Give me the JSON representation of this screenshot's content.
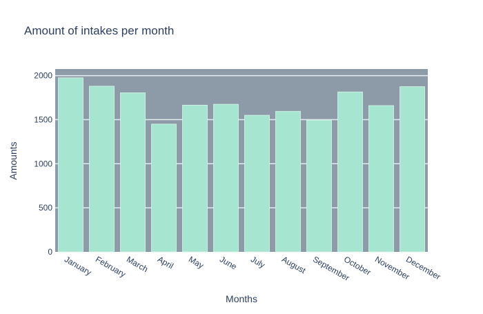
{
  "chart_data": {
    "type": "bar",
    "title": "Amount of intakes per month",
    "xlabel": "Months",
    "ylabel": "Amounts",
    "categories": [
      "January",
      "February",
      "March",
      "April",
      "May",
      "June",
      "July",
      "August",
      "September",
      "October",
      "November",
      "December"
    ],
    "values": [
      1975,
      1880,
      1805,
      1450,
      1665,
      1675,
      1550,
      1595,
      1495,
      1815,
      1660,
      1875
    ],
    "ylim": [
      0,
      2000
    ],
    "yticks": [
      0,
      500,
      1000,
      1500,
      2000
    ],
    "grid": true,
    "legend": "none"
  },
  "colors": {
    "plot_background": "#8d9ba8",
    "bar_fill": "#a6e6d0",
    "bar_stroke": "#d9f5ea",
    "grid": "#e6ebef",
    "text": "#2a3f5f"
  }
}
